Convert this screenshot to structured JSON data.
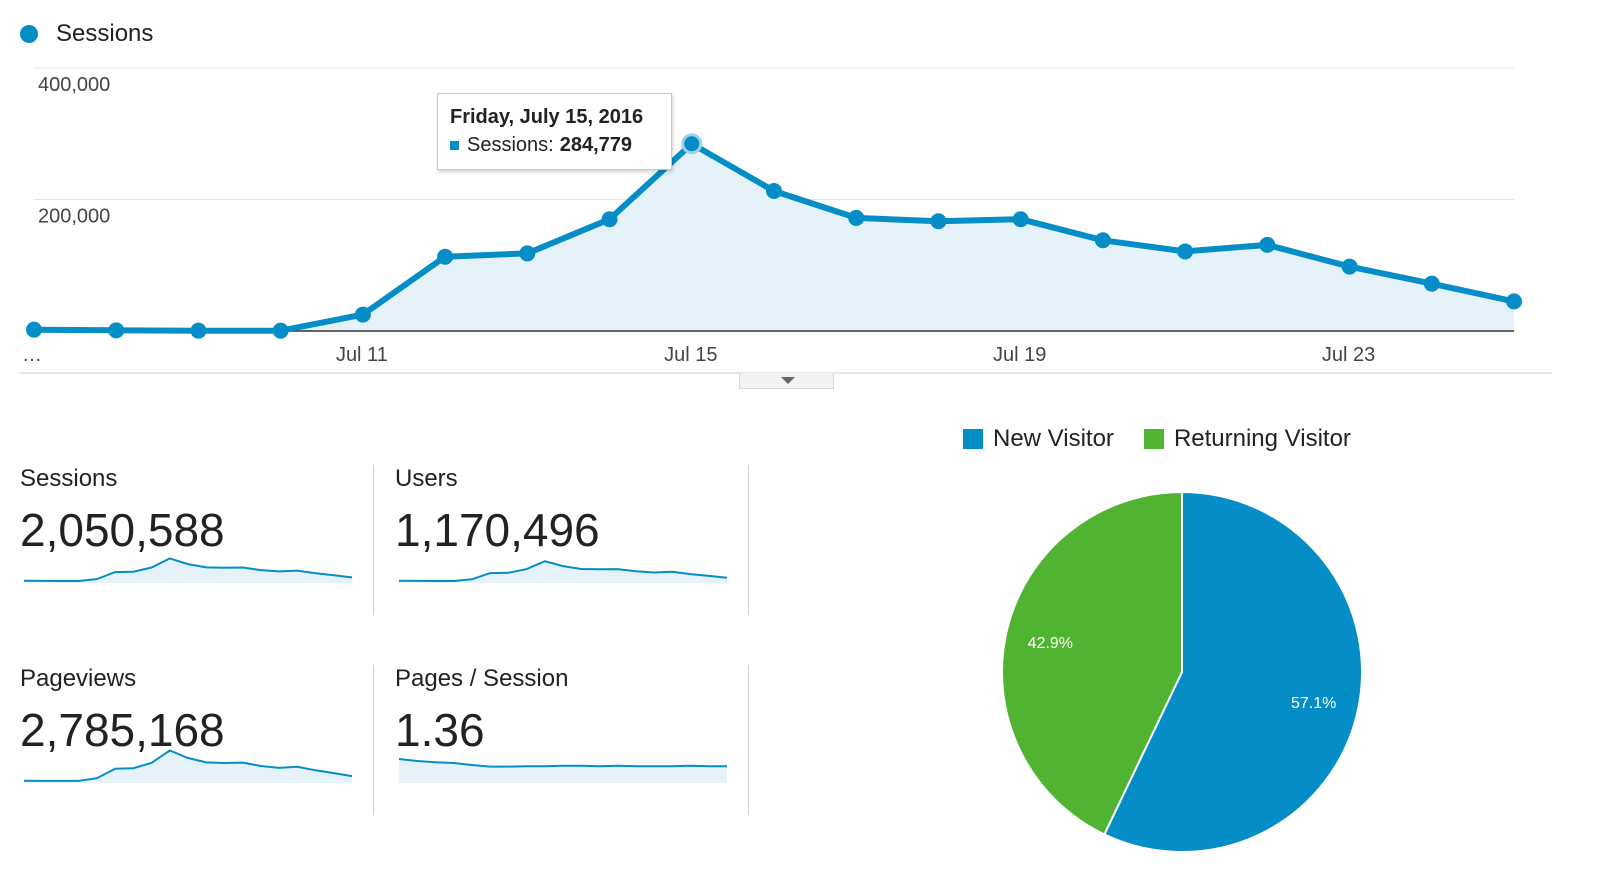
{
  "colors": {
    "series": "#058dc7",
    "area_fill": "#e5f2fa",
    "new_visitor": "#058dc7",
    "returning_visitor": "#50b432"
  },
  "chart_data": [
    {
      "type": "area",
      "title": "",
      "legend": [
        "Sessions"
      ],
      "x_tick_labels": [
        "…",
        "Jul 11",
        "Jul 15",
        "Jul 19",
        "Jul 23"
      ],
      "y_tick_labels": [
        "400,000",
        "200,000"
      ],
      "ylim": [
        0,
        400000
      ],
      "series": [
        {
          "name": "Sessions",
          "values": [
            2000,
            1000,
            500,
            500,
            25000,
            113000,
            118000,
            170000,
            284779,
            213000,
            172000,
            167000,
            170000,
            138000,
            121000,
            131000,
            98000,
            72000,
            45000
          ]
        }
      ],
      "tooltip": {
        "date": "Friday, July 15, 2016",
        "label": "Sessions:",
        "value": "284,779"
      }
    },
    {
      "type": "pie",
      "legend": [
        "New Visitor",
        "Returning Visitor"
      ],
      "slices": [
        {
          "name": "New Visitor",
          "value": 57.1,
          "label": "57.1%"
        },
        {
          "name": "Returning Visitor",
          "value": 42.9,
          "label": "42.9%"
        }
      ]
    }
  ],
  "metrics": [
    {
      "label": "Sessions",
      "value": "2,050,588",
      "spark": [
        2,
        1,
        0.5,
        0.5,
        25,
        113,
        118,
        170,
        285,
        213,
        172,
        167,
        170,
        138,
        121,
        131,
        98,
        72,
        45
      ]
    },
    {
      "label": "Users",
      "value": "1,170,496",
      "spark": [
        2,
        1,
        0.5,
        0.5,
        22,
        100,
        104,
        150,
        250,
        188,
        152,
        148,
        150,
        122,
        107,
        116,
        87,
        64,
        40
      ]
    },
    {
      "label": "Pageviews",
      "value": "2,785,168",
      "spark": [
        3,
        1.5,
        0.7,
        0.7,
        35,
        155,
        162,
        230,
        385,
        290,
        235,
        228,
        232,
        190,
        166,
        180,
        135,
        100,
        62
      ]
    },
    {
      "label": "Pages / Session",
      "value": "1.36",
      "spark": [
        1.55,
        1.5,
        1.47,
        1.45,
        1.4,
        1.36,
        1.36,
        1.37,
        1.37,
        1.38,
        1.38,
        1.37,
        1.38,
        1.37,
        1.37,
        1.37,
        1.38,
        1.37,
        1.37
      ]
    }
  ]
}
